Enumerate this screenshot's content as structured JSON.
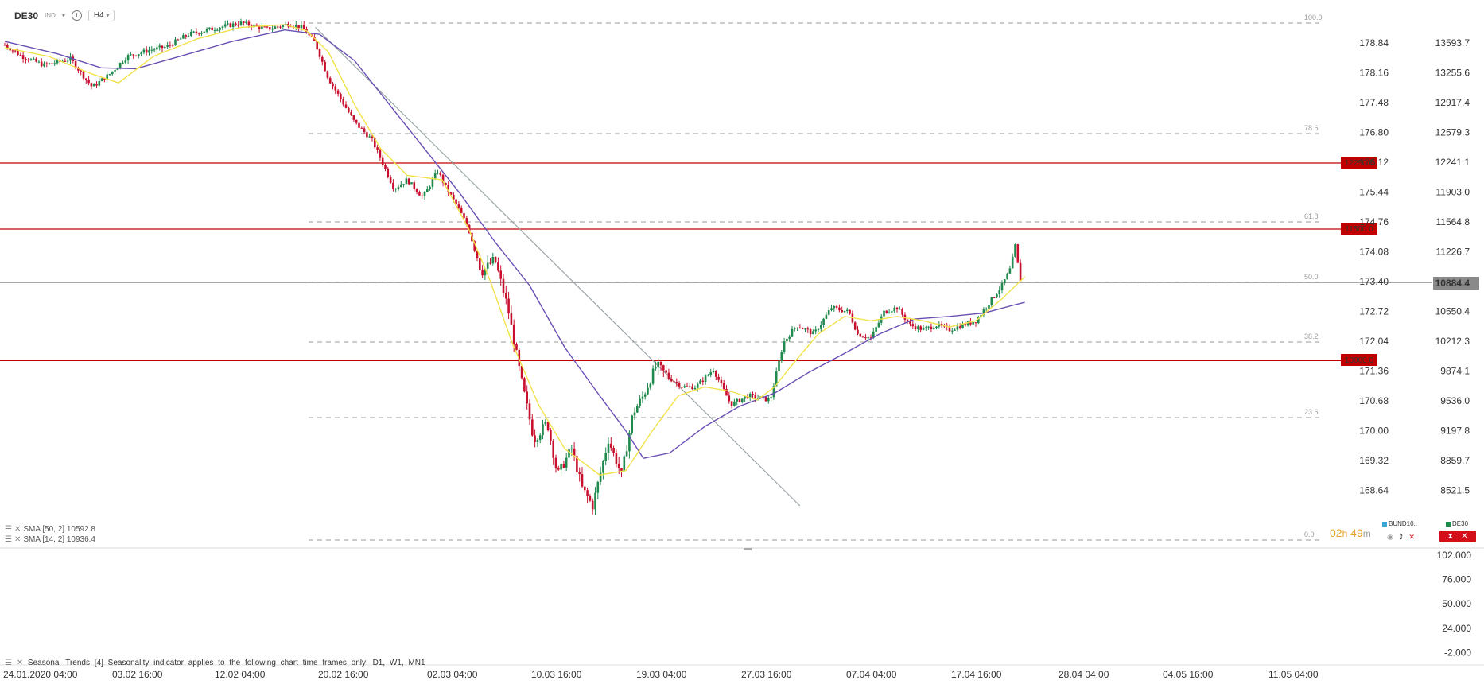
{
  "header": {
    "symbol": "DE30",
    "symbol_type": "IND",
    "timeframe": "H4"
  },
  "colors": {
    "up": "#1f8a4c",
    "down": "#c8102e",
    "sma14": "#f2e24a",
    "sma50": "#6a4fb3",
    "level": "#c00000",
    "fib": "#8c8c8c",
    "axis": "#333333"
  },
  "legend": [
    {
      "label": "SMA [50, 2] 10592.8"
    },
    {
      "label": "SMA [14, 2] 10936.4"
    }
  ],
  "seasonal_text": "Seasonal Trends [4] Seasonality indicator applies to the following chart time frames only: D1, W1, MN1",
  "countdown": {
    "h": "02",
    "hunit": "h",
    "m": "49",
    "munit": "m"
  },
  "mini_legend": [
    {
      "name": "BUND10..",
      "color": "#3aa8d8"
    },
    {
      "name": "DE30",
      "color": "#1f8a4c"
    }
  ],
  "chart_data": [
    {
      "type": "candlestick",
      "symbol": "DE30",
      "timeframe": "H4",
      "x_ticks": [
        "24.01.2020 04:00",
        "03.02 16:00",
        "12.02 04:00",
        "20.02 16:00",
        "02.03 04:00",
        "10.03 16:00",
        "19.03 04:00",
        "27.03 16:00",
        "07.04 04:00",
        "17.04 16:00",
        "28.04 04:00",
        "04.05 16:00",
        "11.05 04:00"
      ],
      "y_ticks": [
        "13593.7",
        "13255.6",
        "12917.4",
        "12579.3",
        "12241.1",
        "11903.0",
        "11564.8",
        "11226.7",
        "10884.4",
        "10550.4",
        "10212.3",
        "9874.1",
        "9536.0",
        "9197.8",
        "8859.7",
        "8521.5"
      ],
      "y2_ticks": [
        "178.84",
        "178.16",
        "177.48",
        "176.80",
        "176.12",
        "175.44",
        "174.76",
        "174.08",
        "173.40",
        "172.72",
        "172.04",
        "171.36",
        "170.68",
        "170.00",
        "169.32",
        "168.64"
      ],
      "last_price": "10884.4",
      "levels": [
        "12250.0",
        "11500.0",
        "10000.0"
      ],
      "fib_labels": [
        "100.0",
        "78.6",
        "61.8",
        "50.0",
        "38.2",
        "23.6",
        "0.0"
      ],
      "close_path": [
        [
          0,
          13580
        ],
        [
          20,
          13450
        ],
        [
          45,
          13350
        ],
        [
          75,
          13420
        ],
        [
          100,
          13100
        ],
        [
          120,
          13250
        ],
        [
          140,
          13450
        ],
        [
          165,
          13520
        ],
        [
          185,
          13560
        ],
        [
          210,
          13700
        ],
        [
          245,
          13780
        ],
        [
          270,
          13830
        ],
        [
          300,
          13760
        ],
        [
          325,
          13820
        ],
        [
          340,
          13780
        ],
        [
          355,
          13600
        ],
        [
          370,
          13200
        ],
        [
          385,
          12950
        ],
        [
          400,
          12700
        ],
        [
          420,
          12500
        ],
        [
          445,
          11950
        ],
        [
          460,
          12050
        ],
        [
          478,
          11850
        ],
        [
          495,
          12150
        ],
        [
          505,
          11950
        ],
        [
          520,
          11700
        ],
        [
          530,
          11500
        ],
        [
          545,
          11000
        ],
        [
          560,
          11150
        ],
        [
          575,
          10600
        ],
        [
          590,
          9800
        ],
        [
          605,
          9100
        ],
        [
          620,
          9300
        ],
        [
          632,
          8700
        ],
        [
          648,
          9000
        ],
        [
          660,
          8550
        ],
        [
          672,
          8350
        ],
        [
          690,
          9100
        ],
        [
          705,
          8700
        ],
        [
          718,
          9400
        ],
        [
          730,
          9600
        ],
        [
          745,
          9950
        ],
        [
          760,
          9800
        ],
        [
          775,
          9700
        ],
        [
          790,
          9700
        ],
        [
          810,
          9900
        ],
        [
          830,
          9500
        ],
        [
          850,
          9600
        ],
        [
          875,
          9550
        ],
        [
          890,
          10200
        ],
        [
          905,
          10400
        ],
        [
          925,
          10300
        ],
        [
          945,
          10600
        ],
        [
          965,
          10550
        ],
        [
          975,
          10300
        ],
        [
          990,
          10250
        ],
        [
          1005,
          10550
        ],
        [
          1020,
          10600
        ],
        [
          1035,
          10400
        ],
        [
          1050,
          10350
        ],
        [
          1065,
          10400
        ],
        [
          1080,
          10350
        ],
        [
          1095,
          10400
        ],
        [
          1110,
          10450
        ],
        [
          1125,
          10650
        ],
        [
          1140,
          10850
        ],
        [
          1150,
          11050
        ],
        [
          1155,
          11300
        ],
        [
          1160,
          10950
        ],
        [
          1162,
          10884
        ]
      ],
      "sma50_path": [
        [
          0,
          13620
        ],
        [
          60,
          13480
        ],
        [
          110,
          13320
        ],
        [
          150,
          13310
        ],
        [
          200,
          13450
        ],
        [
          260,
          13620
        ],
        [
          320,
          13750
        ],
        [
          360,
          13700
        ],
        [
          400,
          13400
        ],
        [
          440,
          12900
        ],
        [
          480,
          12400
        ],
        [
          520,
          11900
        ],
        [
          560,
          11350
        ],
        [
          600,
          10850
        ],
        [
          640,
          10150
        ],
        [
          680,
          9600
        ],
        [
          710,
          9200
        ],
        [
          730,
          8890
        ],
        [
          760,
          8950
        ],
        [
          800,
          9250
        ],
        [
          840,
          9480
        ],
        [
          880,
          9630
        ],
        [
          920,
          9870
        ],
        [
          960,
          10080
        ],
        [
          1000,
          10300
        ],
        [
          1040,
          10470
        ],
        [
          1080,
          10500
        ],
        [
          1120,
          10540
        ],
        [
          1150,
          10620
        ],
        [
          1166,
          10660
        ]
      ],
      "sma14_path": [
        [
          0,
          13550
        ],
        [
          50,
          13450
        ],
        [
          100,
          13250
        ],
        [
          130,
          13150
        ],
        [
          170,
          13450
        ],
        [
          220,
          13650
        ],
        [
          270,
          13780
        ],
        [
          320,
          13810
        ],
        [
          345,
          13740
        ],
        [
          370,
          13500
        ],
        [
          400,
          12900
        ],
        [
          430,
          12400
        ],
        [
          460,
          12100
        ],
        [
          500,
          12050
        ],
        [
          530,
          11500
        ],
        [
          555,
          10900
        ],
        [
          580,
          10200
        ],
        [
          610,
          9500
        ],
        [
          640,
          9000
        ],
        [
          680,
          8700
        ],
        [
          710,
          8750
        ],
        [
          740,
          9200
        ],
        [
          770,
          9600
        ],
        [
          800,
          9700
        ],
        [
          830,
          9650
        ],
        [
          860,
          9550
        ],
        [
          880,
          9700
        ],
        [
          900,
          9950
        ],
        [
          930,
          10300
        ],
        [
          960,
          10500
        ],
        [
          990,
          10450
        ],
        [
          1020,
          10500
        ],
        [
          1050,
          10450
        ],
        [
          1080,
          10380
        ],
        [
          1110,
          10450
        ],
        [
          1140,
          10700
        ],
        [
          1166,
          10950
        ]
      ]
    },
    {
      "type": "line",
      "name": "Seasonal Trends [4]",
      "y_ticks": [
        "102.000",
        "76.000",
        "50.000",
        "24.000",
        "-2.000"
      ]
    }
  ]
}
